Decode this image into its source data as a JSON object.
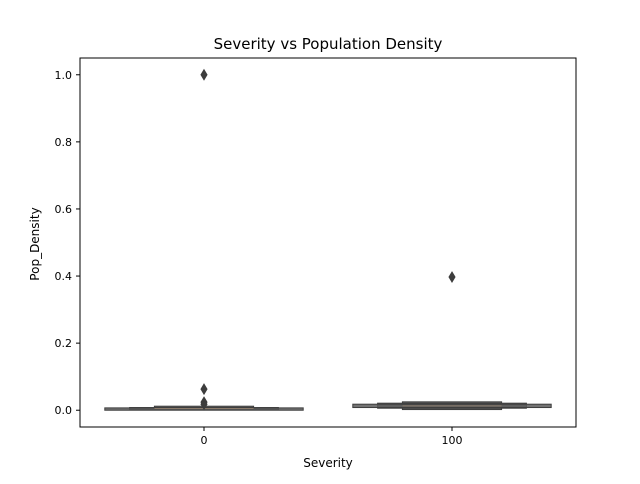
{
  "chart_data": {
    "type": "boxen",
    "title": "Severity vs Population Density",
    "xlabel": "Severity",
    "ylabel": "Pop_Density",
    "categories": [
      "0",
      "100"
    ],
    "ylim": [
      -0.05,
      1.05
    ],
    "yticks": [
      "0.0",
      "0.2",
      "0.4",
      "0.6",
      "0.8",
      "1.0"
    ],
    "ytick_values": [
      0.0,
      0.2,
      0.4,
      0.6,
      0.8,
      1.0
    ],
    "grid": false,
    "series": [
      {
        "category": "0",
        "boxes": [
          {
            "level": 0,
            "low": 0.003,
            "high": 0.012
          },
          {
            "level": 1,
            "low": 0.001,
            "high": 0.008
          },
          {
            "level": 2,
            "low": 0.0,
            "high": 0.007
          }
        ],
        "median": 0.005,
        "outliers": [
          1.0,
          0.063,
          0.024,
          0.018
        ]
      },
      {
        "category": "100",
        "boxes": [
          {
            "level": 0,
            "low": 0.002,
            "high": 0.025
          },
          {
            "level": 1,
            "low": 0.006,
            "high": 0.021
          },
          {
            "level": 2,
            "low": 0.008,
            "high": 0.018
          }
        ],
        "median": 0.013,
        "outliers": [
          0.397
        ]
      }
    ],
    "colors": {
      "box_fill": "#5b5b5b",
      "box_edge": "#3d3d3d",
      "median": "#8a7a6a",
      "outlier": "#3d3d3d"
    }
  }
}
